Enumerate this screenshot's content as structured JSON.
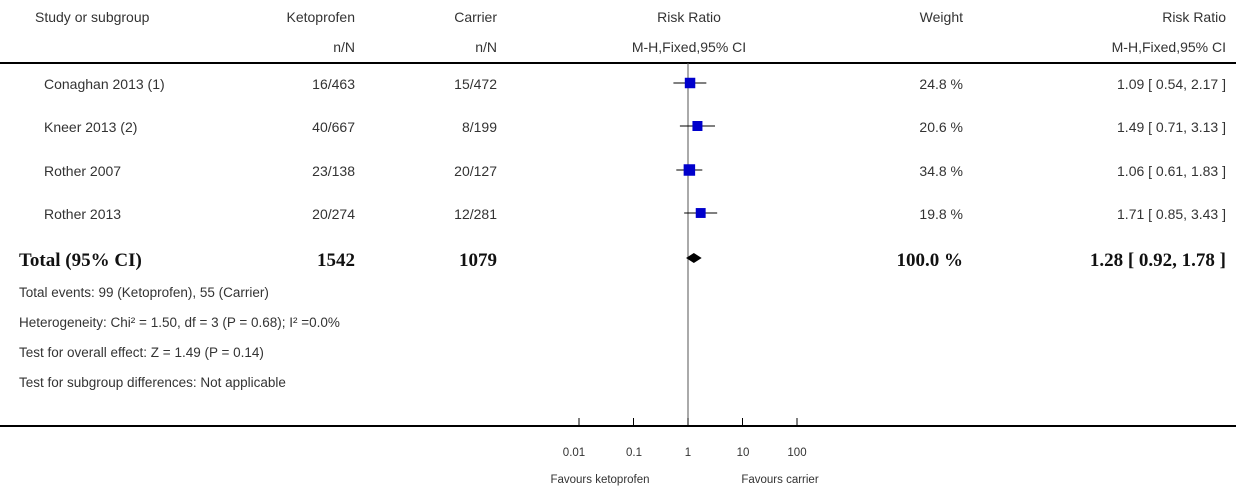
{
  "header": {
    "col_study": "Study or subgroup",
    "col_ketoprofen": "Ketoprofen",
    "col_carrier": "Carrier",
    "col_risk_ratio_plot": "Risk Ratio",
    "col_weight": "Weight",
    "col_risk_ratio_text": "Risk Ratio",
    "sub_ketoprofen": "n/N",
    "sub_carrier": "n/N",
    "sub_risk_ratio_plot": "M-H,Fixed,95% CI",
    "sub_risk_ratio_text": "M-H,Fixed,95% CI"
  },
  "total": {
    "label": "Total (95% CI)",
    "ketoprofen": "1542",
    "carrier": "1079",
    "weight": "100.0 %",
    "rr_text": "1.28 [ 0.92, 1.78 ]"
  },
  "footnotes": {
    "events": "Total events: 99 (Ketoprofen), 55 (Carrier)",
    "heterogeneity": "Heterogeneity: Chi² = 1.50, df = 3 (P = 0.68); I² =0.0%",
    "overall": "Test for overall effect: Z = 1.49 (P = 0.14)",
    "subgroup": "Test for subgroup differences: Not applicable"
  },
  "axis": {
    "ticks": [
      "0.01",
      "0.1",
      "1",
      "10",
      "100"
    ],
    "favours_left": "Favours ketoprofen",
    "favours_right": "Favours carrier"
  },
  "chart_data": {
    "type": "forest",
    "scale": "log",
    "xlim": [
      0.01,
      100
    ],
    "x_ticks": [
      0.01,
      0.1,
      1,
      10,
      100
    ],
    "studies": [
      {
        "name": "Conaghan 2013 (1)",
        "ketoprofen": "16/463",
        "carrier": "15/472",
        "weight": "24.8 %",
        "rr": 1.09,
        "ci_low": 0.54,
        "ci_high": 2.17,
        "rr_text": "1.09 [ 0.54, 2.17 ]"
      },
      {
        "name": "Kneer 2013 (2)",
        "ketoprofen": "40/667",
        "carrier": "8/199",
        "weight": "20.6 %",
        "rr": 1.49,
        "ci_low": 0.71,
        "ci_high": 3.13,
        "rr_text": "1.49 [ 0.71, 3.13 ]"
      },
      {
        "name": "Rother 2007",
        "ketoprofen": "23/138",
        "carrier": "20/127",
        "weight": "34.8 %",
        "rr": 1.06,
        "ci_low": 0.61,
        "ci_high": 1.83,
        "rr_text": "1.06 [ 0.61, 1.83 ]"
      },
      {
        "name": "Rother 2013",
        "ketoprofen": "20/274",
        "carrier": "12/281",
        "weight": "19.8 %",
        "rr": 1.71,
        "ci_low": 0.85,
        "ci_high": 3.43,
        "rr_text": "1.71 [ 0.85, 3.43 ]"
      }
    ],
    "pooled": {
      "rr": 1.28,
      "ci_low": 0.92,
      "ci_high": 1.78
    },
    "colors": {
      "marker": "#0000cc",
      "line": "#000000",
      "diamond": "#000000"
    }
  }
}
